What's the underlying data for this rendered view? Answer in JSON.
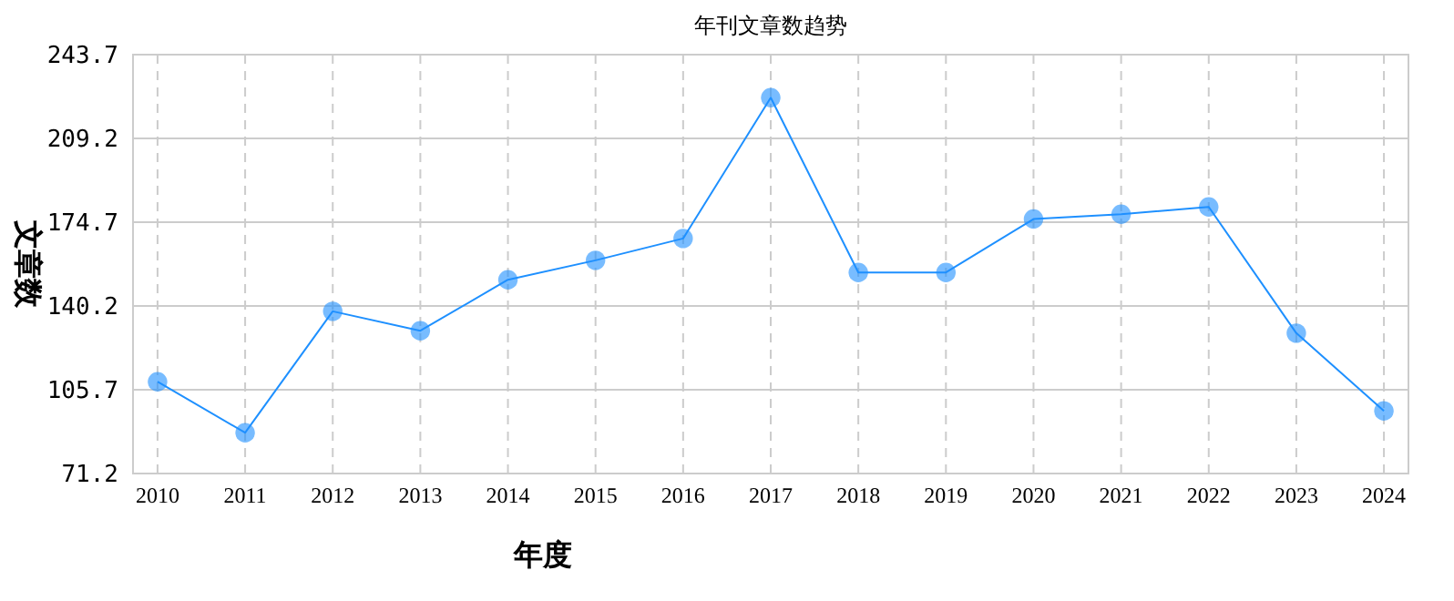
{
  "chart_data": {
    "type": "line",
    "title": "年刊文章数趋势",
    "xlabel": "年度",
    "ylabel": "文章数",
    "categories": [
      "2010",
      "2011",
      "2012",
      "2013",
      "2014",
      "2015",
      "2016",
      "2017",
      "2018",
      "2019",
      "2020",
      "2021",
      "2022",
      "2023",
      "2024"
    ],
    "series": [
      {
        "color": "#1e90ff",
        "values": [
          109,
          88,
          138,
          130,
          151,
          159,
          168,
          226,
          154,
          154,
          176,
          178,
          181,
          129,
          97
        ]
      }
    ],
    "ylim": [
      71.2,
      243.7
    ],
    "yticks": [
      71.2,
      105.7,
      140.2,
      174.7,
      209.2,
      243.7
    ],
    "grid": true,
    "marker": "circle",
    "line_style": "solid"
  }
}
